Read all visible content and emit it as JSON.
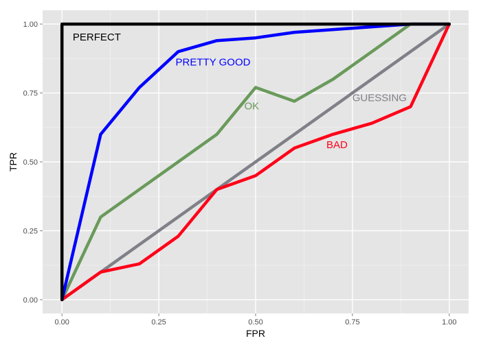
{
  "chart_data": {
    "type": "line",
    "xlabel": "FPR",
    "ylabel": "TPR",
    "xlim": [
      -0.05,
      1.05
    ],
    "ylim": [
      -0.05,
      1.05
    ],
    "grid": true,
    "legend": "none",
    "xticks": [
      0,
      0.25,
      0.5,
      0.75,
      1
    ],
    "yticks": [
      0,
      0.25,
      0.5,
      0.75,
      1
    ],
    "xtick_labels": [
      "0.00",
      "0.25",
      "0.50",
      "0.75",
      "1.00"
    ],
    "ytick_labels": [
      "0.00",
      "0.25",
      "0.50",
      "0.75",
      "1.00"
    ],
    "series": [
      {
        "name": "GUESSING",
        "color": "#808089",
        "x": [
          0,
          1
        ],
        "y": [
          0,
          1
        ],
        "label_at": [
          0.82,
          0.72
        ]
      },
      {
        "name": "OK",
        "color": "#6a9a5b",
        "x": [
          0,
          0.1,
          0.2,
          0.3,
          0.4,
          0.5,
          0.6,
          0.7,
          0.8,
          0.9,
          1.0
        ],
        "y": [
          0,
          0.3,
          0.4,
          0.5,
          0.6,
          0.77,
          0.72,
          0.8,
          0.9,
          1.0,
          1.0
        ],
        "label_at": [
          0.49,
          0.69
        ]
      },
      {
        "name": "BAD",
        "color": "#ff0019",
        "x": [
          0,
          0.1,
          0.2,
          0.3,
          0.4,
          0.5,
          0.6,
          0.7,
          0.8,
          0.9,
          1.0
        ],
        "y": [
          0,
          0.1,
          0.13,
          0.23,
          0.4,
          0.45,
          0.55,
          0.6,
          0.64,
          0.7,
          1.0
        ],
        "label_at": [
          0.71,
          0.55
        ]
      },
      {
        "name": "PRETTY GOOD",
        "color": "#0000ff",
        "x": [
          0,
          0.1,
          0.2,
          0.3,
          0.4,
          0.5,
          0.6,
          0.7,
          0.8,
          0.9,
          1.0
        ],
        "y": [
          0,
          0.6,
          0.77,
          0.9,
          0.94,
          0.95,
          0.97,
          0.98,
          0.99,
          1.0,
          1.0
        ],
        "label_at": [
          0.39,
          0.85
        ]
      },
      {
        "name": "PERFECT",
        "color": "#000000",
        "x": [
          0,
          0,
          1
        ],
        "y": [
          0,
          1,
          1
        ],
        "label_at": [
          0.09,
          0.94
        ]
      }
    ]
  }
}
